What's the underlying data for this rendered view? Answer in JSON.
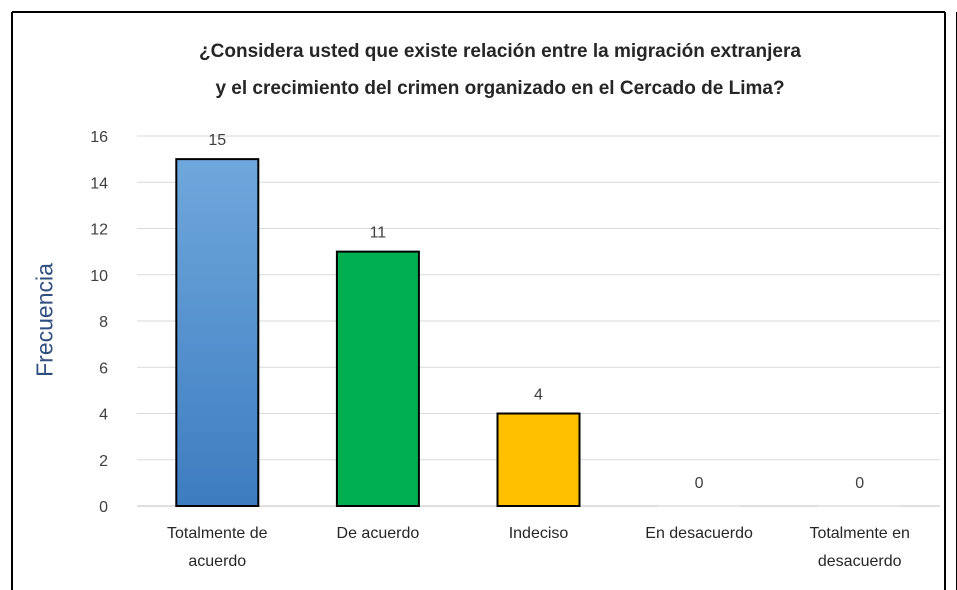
{
  "chart_data": {
    "type": "bar",
    "title_line1": "¿Considera usted que existe relación  entre la migración  extranjera",
    "title_line2": "y el crecimiento del crimen organizado  en el Cercado de Lima?",
    "ylabel": "Frecuencia",
    "categories": [
      [
        "Totalmente de",
        "acuerdo"
      ],
      [
        "De acuerdo"
      ],
      [
        "Indeciso"
      ],
      [
        "En desacuerdo"
      ],
      [
        "Totalmente en",
        "desacuerdo"
      ]
    ],
    "values": [
      15,
      11,
      4,
      0,
      0
    ],
    "colors": [
      "#5b9bd5",
      "#00b050",
      "#ffc000",
      "#ffffff",
      "#ffffff"
    ],
    "ylim": [
      0,
      16
    ],
    "yticks": [
      0,
      2,
      4,
      6,
      8,
      10,
      12,
      14,
      16
    ],
    "grid": true
  }
}
